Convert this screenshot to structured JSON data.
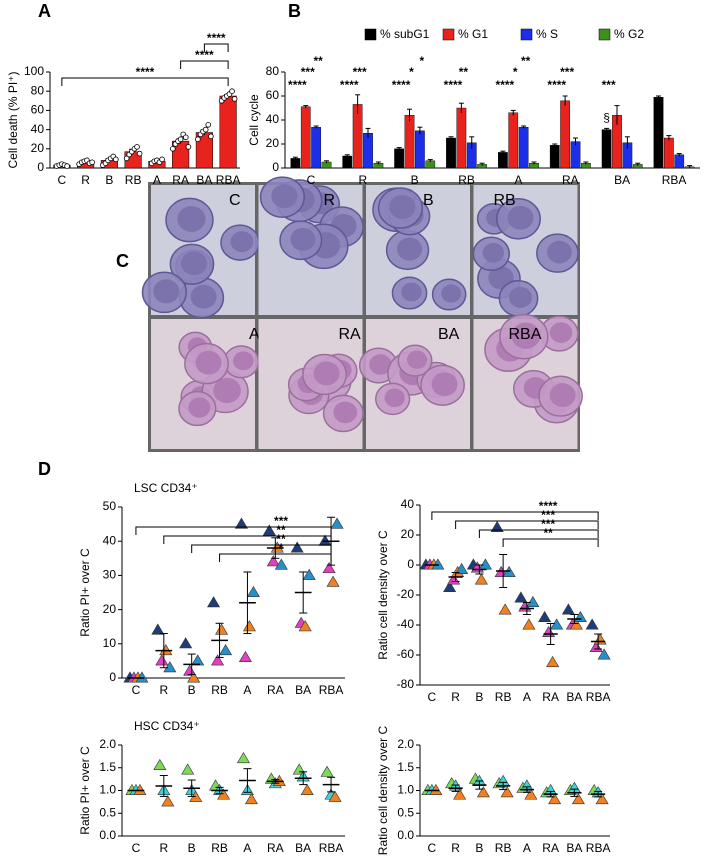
{
  "panel_labels": [
    "A",
    "B",
    "C",
    "D"
  ],
  "micrographs": {
    "labels": [
      "C",
      "R",
      "B",
      "RB",
      "A",
      "RA",
      "BA",
      "RBA"
    ]
  },
  "chart_data": [
    {
      "type": "bar",
      "ylabel": "Cell death (% PI⁺)",
      "color": "#e8221c",
      "categories": [
        "C",
        "R",
        "B",
        "RB",
        "A",
        "RA",
        "BA",
        "RBA"
      ],
      "values": [
        3,
        6,
        8,
        17,
        7,
        28,
        37,
        75
      ],
      "errors": [
        1,
        1,
        1.5,
        2.5,
        1,
        2.5,
        2.5,
        1.5
      ],
      "points": [
        [
          2,
          3,
          4,
          3,
          2
        ],
        [
          4,
          6,
          7,
          8,
          5,
          6
        ],
        [
          3,
          5,
          8,
          10,
          12,
          9
        ],
        [
          10,
          14,
          17,
          20,
          22,
          15
        ],
        [
          5,
          7,
          8,
          6,
          9
        ],
        [
          20,
          25,
          28,
          30,
          35,
          32,
          22
        ],
        [
          30,
          35,
          38,
          40,
          45,
          33
        ],
        [
          70,
          73,
          75,
          77,
          80,
          72
        ]
      ],
      "ylim": [
        0,
        100
      ],
      "yticks": [
        0,
        20,
        40,
        60,
        80,
        100
      ],
      "comparisons": [
        {
          "from": "C",
          "to": "RBA",
          "label": "****"
        },
        {
          "from": "RA",
          "to": "RBA",
          "label": "****"
        },
        {
          "from": "BA",
          "to": "RBA",
          "label": "****"
        }
      ]
    },
    {
      "type": "grouped_bar",
      "ylabel": "Cell cycle",
      "categories": [
        "C",
        "R",
        "B",
        "RB",
        "A",
        "RA",
        "BA",
        "RBA"
      ],
      "series": [
        {
          "name": "% subG1",
          "color": "#000000",
          "values": [
            8,
            10,
            16,
            25,
            13,
            19,
            32,
            59
          ],
          "errors": [
            1,
            1,
            1,
            1,
            1,
            1,
            1,
            1
          ]
        },
        {
          "name": "% G1",
          "color": "#e8221c",
          "values": [
            51,
            53,
            44,
            50,
            46,
            56,
            44,
            25
          ],
          "errors": [
            1,
            8,
            5,
            4,
            2,
            4,
            8,
            2
          ]
        },
        {
          "name": "% S",
          "color": "#1c2fe8",
          "values": [
            34,
            29,
            31,
            21,
            34,
            22,
            21,
            11
          ],
          "errors": [
            1,
            4,
            3,
            5,
            1,
            3,
            5,
            1
          ]
        },
        {
          "name": "% G2",
          "color": "#3f8f1c",
          "values": [
            5,
            4,
            6,
            3,
            4,
            4,
            3,
            1
          ],
          "errors": [
            1,
            1,
            1,
            1,
            1,
            1,
            1,
            1
          ]
        }
      ],
      "ylim": [
        0,
        80
      ],
      "yticks": [
        0,
        20,
        40,
        60,
        80
      ],
      "annotations": [
        {
          "category": "C",
          "series": "% subG1",
          "text": "****"
        },
        {
          "category": "C",
          "series": "% G1",
          "text": "***"
        },
        {
          "category": "C",
          "series": "% S",
          "text": "**"
        },
        {
          "category": "R",
          "series": "% subG1",
          "text": "****"
        },
        {
          "category": "R",
          "series": "% G1",
          "text": "***"
        },
        {
          "category": "B",
          "series": "% subG1",
          "text": "****"
        },
        {
          "category": "B",
          "series": "% G1",
          "text": "*"
        },
        {
          "category": "B",
          "series": "% S",
          "text": "*"
        },
        {
          "category": "RB",
          "series": "% subG1",
          "text": "****"
        },
        {
          "category": "RB",
          "series": "% G1",
          "text": "**"
        },
        {
          "category": "A",
          "series": "% subG1",
          "text": "****"
        },
        {
          "category": "A",
          "series": "% G1",
          "text": "*"
        },
        {
          "category": "A",
          "series": "% S",
          "text": "**"
        },
        {
          "category": "RA",
          "series": "% subG1",
          "text": "****"
        },
        {
          "category": "RA",
          "series": "% G1",
          "text": "***"
        },
        {
          "category": "BA",
          "series": "% subG1",
          "text": "***"
        }
      ],
      "symbols": [
        {
          "category": "BA",
          "series": "% subG1",
          "text": "§"
        }
      ]
    },
    {
      "type": "dot",
      "title": "LSC CD34⁺",
      "ylabel": "Ratio PI+ over C",
      "categories": [
        "C",
        "R",
        "B",
        "RB",
        "A",
        "RA",
        "BA",
        "RBA"
      ],
      "series": [
        {
          "color": "#1f3c7a",
          "values": [
            0,
            14,
            10,
            22,
            45,
            43,
            38,
            40
          ]
        },
        {
          "color": "#e040c0",
          "values": [
            0,
            5,
            2,
            5,
            6,
            34,
            16,
            32
          ]
        },
        {
          "color": "#f08020",
          "values": [
            0,
            8,
            0,
            14,
            15,
            38,
            15,
            28
          ]
        },
        {
          "color": "#2a8fc8",
          "values": [
            0,
            3,
            5,
            8,
            25,
            33,
            30,
            45
          ]
        }
      ],
      "mean": [
        0,
        8,
        4,
        11,
        22,
        38,
        25,
        40
      ],
      "sem": [
        0,
        5,
        3,
        5,
        9,
        3,
        6,
        7
      ],
      "ylim": [
        0,
        50
      ],
      "yticks": [
        0,
        10,
        20,
        30,
        40,
        50
      ],
      "comparisons": [
        {
          "from": "C",
          "to": "RBA",
          "label": "***"
        },
        {
          "from": "R",
          "to": "RBA",
          "label": "**"
        },
        {
          "from": "B",
          "to": "RBA",
          "label": "**"
        },
        {
          "from": "RB",
          "to": "RBA",
          "label": "*"
        }
      ]
    },
    {
      "type": "dot",
      "ylabel": "Ratio cell density over C",
      "categories": [
        "C",
        "R",
        "B",
        "RB",
        "A",
        "RA",
        "BA",
        "RBA"
      ],
      "series": [
        {
          "color": "#1f3c7a",
          "values": [
            0,
            -15,
            0,
            25,
            -22,
            -35,
            -30,
            -40
          ]
        },
        {
          "color": "#e040c0",
          "values": [
            0,
            -10,
            -2,
            -5,
            -28,
            -45,
            -40,
            -55
          ]
        },
        {
          "color": "#f08020",
          "values": [
            0,
            -5,
            -10,
            -30,
            -40,
            -65,
            -40,
            -50
          ]
        },
        {
          "color": "#2a8fc8",
          "values": [
            0,
            -3,
            0,
            -5,
            -25,
            -40,
            -35,
            -60
          ]
        }
      ],
      "mean": [
        0,
        -8,
        -3,
        -4,
        -29,
        -46,
        -36,
        -51
      ],
      "sem": [
        0,
        3,
        3,
        11,
        4,
        7,
        3,
        5
      ],
      "ylim": [
        -80,
        40
      ],
      "yticks": [
        -80,
        -60,
        -40,
        -20,
        0,
        20,
        40
      ],
      "comparisons": [
        {
          "from": "C",
          "to": "RBA",
          "label": "****"
        },
        {
          "from": "R",
          "to": "RBA",
          "label": "***"
        },
        {
          "from": "B",
          "to": "RBA",
          "label": "***"
        },
        {
          "from": "RB",
          "to": "RBA",
          "label": "**"
        }
      ]
    },
    {
      "type": "dot",
      "title": "HSC CD34⁺",
      "ylabel": "Ratio PI+ over C",
      "categories": [
        "C",
        "R",
        "B",
        "RB",
        "A",
        "RA",
        "BA",
        "RBA"
      ],
      "series": [
        {
          "color": "#7ed957",
          "values": [
            1,
            1.55,
            1.45,
            1.1,
            1.7,
            1.25,
            1.45,
            1.4
          ]
        },
        {
          "color": "#40d0d8",
          "values": [
            1,
            1.0,
            1.0,
            1.0,
            1.0,
            1.15,
            1.3,
            0.9
          ]
        },
        {
          "color": "#f08020",
          "values": [
            1,
            0.75,
            0.85,
            0.9,
            0.8,
            1.2,
            1.0,
            0.85
          ]
        }
      ],
      "mean": [
        1,
        1.1,
        1.05,
        1.0,
        1.22,
        1.2,
        1.27,
        1.13
      ],
      "sem": [
        0,
        0.23,
        0.18,
        0.07,
        0.26,
        0.04,
        0.14,
        0.16
      ],
      "ylim": [
        0,
        2
      ],
      "yticks": [
        {
          "value": 0,
          "label": "0.0"
        },
        0.5,
        {
          "value": 1,
          "label": "1.0"
        },
        1.5,
        {
          "value": 2,
          "label": "2.0"
        }
      ]
    },
    {
      "type": "dot",
      "ylabel": "Ratio cell density over C",
      "categories": [
        "C",
        "R",
        "B",
        "RB",
        "A",
        "RA",
        "BA",
        "RBA"
      ],
      "series": [
        {
          "color": "#7ed957",
          "values": [
            1,
            1.15,
            1.25,
            1.15,
            1.05,
            0.95,
            1.0,
            1.0
          ]
        },
        {
          "color": "#40d0d8",
          "values": [
            1,
            1.1,
            1.2,
            1.2,
            1.1,
            1.0,
            1.05,
            0.95
          ]
        },
        {
          "color": "#f08020",
          "values": [
            1,
            0.9,
            0.95,
            0.95,
            0.9,
            0.8,
            0.8,
            0.8
          ]
        }
      ],
      "mean": [
        1,
        1.05,
        1.12,
        1.1,
        1.02,
        0.92,
        0.95,
        0.92
      ],
      "sem": [
        0,
        0.07,
        0.09,
        0.08,
        0.06,
        0.06,
        0.08,
        0.06
      ],
      "ylim": [
        0,
        2
      ],
      "yticks": [
        {
          "value": 0,
          "label": "0.0"
        },
        0.5,
        {
          "value": 1,
          "label": "1.0"
        },
        1.5,
        {
          "value": 2,
          "label": "2.0"
        }
      ]
    }
  ]
}
